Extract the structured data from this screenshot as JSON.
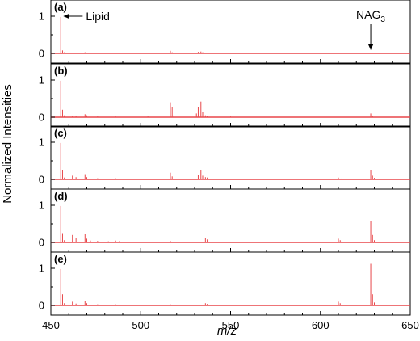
{
  "chart_data": {
    "type": "bar",
    "ylabel": "Normalized Intensities",
    "xlabel": "m/z",
    "xlim": [
      450,
      650
    ],
    "ylim": [
      0,
      1.3
    ],
    "x_ticks": [
      "450",
      "500",
      "550",
      "600",
      "650"
    ],
    "y_ticks": [
      "0",
      "1"
    ],
    "color": "#e8474a",
    "annotations": {
      "lipid": {
        "text": "Lipid",
        "x": 456
      },
      "nag": {
        "text": "NAG",
        "sub": "3",
        "x": 628
      }
    },
    "panels": [
      {
        "label": "(a)",
        "peaks": [
          [
            455.5,
            0.98
          ],
          [
            456.5,
            0.08
          ],
          [
            457.5,
            0.03
          ],
          [
            462,
            0.02
          ],
          [
            469,
            0.03
          ],
          [
            470,
            0.02
          ],
          [
            476,
            0.01
          ],
          [
            486,
            0.01
          ],
          [
            516.5,
            0.07
          ],
          [
            517.5,
            0.03
          ],
          [
            532,
            0.04
          ],
          [
            533.5,
            0.05
          ],
          [
            534.5,
            0.03
          ],
          [
            536,
            0.02
          ],
          [
            628,
            0.02
          ]
        ]
      },
      {
        "label": "(b)",
        "peaks": [
          [
            455.5,
            0.98
          ],
          [
            456.5,
            0.2
          ],
          [
            457.5,
            0.05
          ],
          [
            462,
            0.04
          ],
          [
            464,
            0.03
          ],
          [
            469,
            0.08
          ],
          [
            470,
            0.05
          ],
          [
            476,
            0.02
          ],
          [
            486,
            0.02
          ],
          [
            495,
            0.01
          ],
          [
            504,
            0.02
          ],
          [
            516.5,
            0.4
          ],
          [
            517.5,
            0.28
          ],
          [
            518.5,
            0.05
          ],
          [
            531,
            0.1
          ],
          [
            532,
            0.28
          ],
          [
            533.5,
            0.42
          ],
          [
            534.5,
            0.15
          ],
          [
            536,
            0.05
          ],
          [
            537,
            0.04
          ],
          [
            550,
            0.02
          ],
          [
            628,
            0.1
          ],
          [
            629,
            0.04
          ]
        ]
      },
      {
        "label": "(c)",
        "peaks": [
          [
            455.5,
            0.98
          ],
          [
            456.5,
            0.25
          ],
          [
            457.5,
            0.05
          ],
          [
            462,
            0.1
          ],
          [
            464,
            0.06
          ],
          [
            469,
            0.14
          ],
          [
            470,
            0.06
          ],
          [
            476,
            0.03
          ],
          [
            486,
            0.03
          ],
          [
            492,
            0.02
          ],
          [
            504,
            0.02
          ],
          [
            516.5,
            0.18
          ],
          [
            517.5,
            0.08
          ],
          [
            532,
            0.12
          ],
          [
            533.5,
            0.25
          ],
          [
            534.5,
            0.1
          ],
          [
            536,
            0.06
          ],
          [
            537,
            0.05
          ],
          [
            610,
            0.05
          ],
          [
            612,
            0.03
          ],
          [
            628,
            0.25
          ],
          [
            629,
            0.1
          ],
          [
            630,
            0.04
          ]
        ]
      },
      {
        "label": "(d)",
        "peaks": [
          [
            455.5,
            0.98
          ],
          [
            456.5,
            0.25
          ],
          [
            457.5,
            0.06
          ],
          [
            462,
            0.2
          ],
          [
            464,
            0.12
          ],
          [
            469,
            0.22
          ],
          [
            470,
            0.1
          ],
          [
            472,
            0.05
          ],
          [
            476,
            0.04
          ],
          [
            482,
            0.03
          ],
          [
            486,
            0.05
          ],
          [
            488,
            0.03
          ],
          [
            516.5,
            0.04
          ],
          [
            536,
            0.12
          ],
          [
            537,
            0.08
          ],
          [
            610,
            0.1
          ],
          [
            611,
            0.06
          ],
          [
            612,
            0.04
          ],
          [
            628,
            0.58
          ],
          [
            629,
            0.2
          ],
          [
            630,
            0.06
          ]
        ]
      },
      {
        "label": "(e)",
        "peaks": [
          [
            455.5,
            0.98
          ],
          [
            456.5,
            0.3
          ],
          [
            457.5,
            0.06
          ],
          [
            462,
            0.1
          ],
          [
            464,
            0.05
          ],
          [
            469,
            0.12
          ],
          [
            470,
            0.06
          ],
          [
            476,
            0.03
          ],
          [
            486,
            0.03
          ],
          [
            516.5,
            0.03
          ],
          [
            536,
            0.06
          ],
          [
            537,
            0.04
          ],
          [
            610,
            0.1
          ],
          [
            611,
            0.06
          ],
          [
            628,
            1.12
          ],
          [
            629,
            0.3
          ],
          [
            630,
            0.08
          ]
        ]
      }
    ]
  }
}
